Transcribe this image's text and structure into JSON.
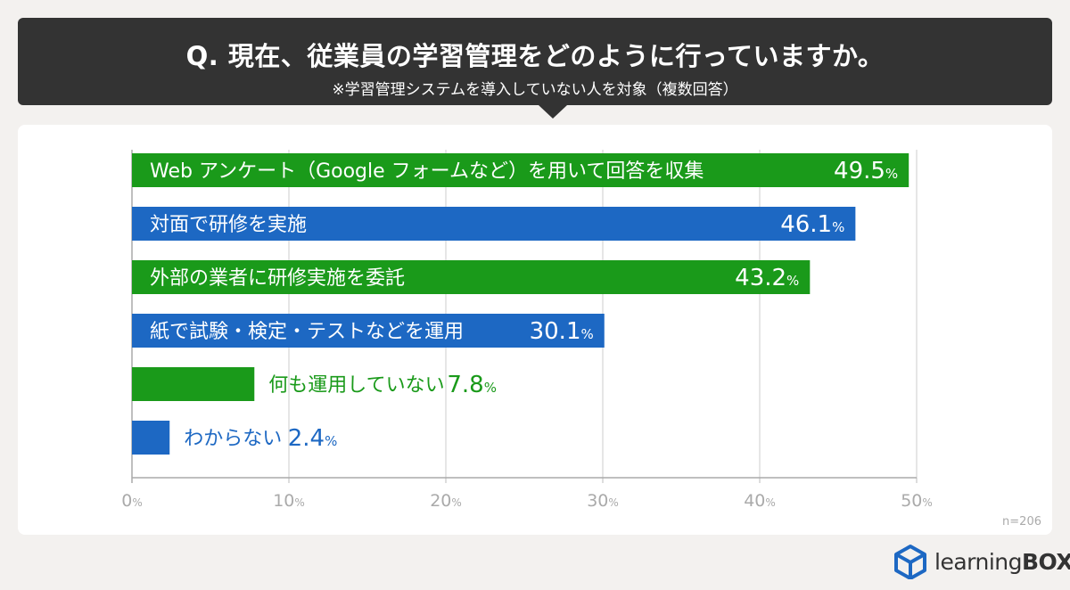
{
  "header": {
    "title": "Q. 現在、従業員の学習管理をどのように行っていますか。",
    "subtitle": "※学習管理システムを導入していない人を対象（複数回答）"
  },
  "chart_data": {
    "type": "bar",
    "orientation": "horizontal",
    "categories": [
      "Web アンケート（Google フォームなど）を用いて回答を収集",
      "対面で研修を実施",
      "外部の業者に研修実施を委託",
      "紙で試験・検定・テストなどを運用",
      "何も運用していない",
      "わからない"
    ],
    "values": [
      49.5,
      46.1,
      43.2,
      30.1,
      7.8,
      2.4
    ],
    "value_labels": [
      {
        "num": "49.5",
        "unit": "%"
      },
      {
        "num": "46.1",
        "unit": "%"
      },
      {
        "num": "43.2",
        "unit": "%"
      },
      {
        "num": "30.1",
        "unit": "%"
      },
      {
        "num": "7.8",
        "unit": "%"
      },
      {
        "num": "2.4",
        "unit": "%"
      }
    ],
    "bar_colors": [
      "#1a9a1a",
      "#1d68c3",
      "#1a9a1a",
      "#1d68c3",
      "#1a9a1a",
      "#1d68c3"
    ],
    "xlim": [
      0,
      50
    ],
    "xticks": [
      0,
      10,
      20,
      30,
      40,
      50
    ],
    "xtick_labels": [
      {
        "num": "0",
        "unit": "%"
      },
      {
        "num": "10",
        "unit": "%"
      },
      {
        "num": "20",
        "unit": "%"
      },
      {
        "num": "30",
        "unit": "%"
      },
      {
        "num": "40",
        "unit": "%"
      },
      {
        "num": "50",
        "unit": "%"
      }
    ],
    "grid": true,
    "sample_size": "n=206"
  },
  "logo": {
    "text_main": "learning",
    "text_bold": "BOX",
    "icon": "cube-icon",
    "color": "#1d68c3"
  }
}
